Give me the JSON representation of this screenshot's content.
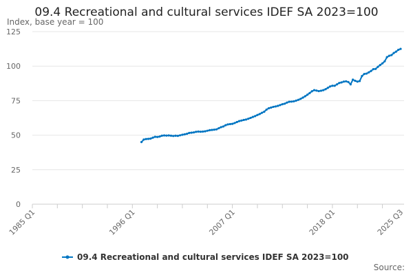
{
  "chart_data": {
    "type": "line",
    "title": "09.4 Recreational and cultural services IDEF SA 2023=100",
    "ylabel": "Index, base year = 100",
    "xlabel": "",
    "ylim": [
      0,
      125
    ],
    "yticks": [
      0,
      25,
      50,
      75,
      100,
      125
    ],
    "x_range": [
      "1985 Q1",
      "2025 Q3"
    ],
    "xtick_labels": [
      "1985 Q1",
      "1996 Q1",
      "2007 Q1",
      "2018 Q1",
      "2025 Q3"
    ],
    "grid": "horizontal",
    "legend_position": "bottom",
    "color": "#0075c2",
    "source_label": "Source:",
    "series": [
      {
        "name": "09.4 Recreational and cultural services IDEF SA 2023=100",
        "start": "1997 Q1",
        "values": [
          45,
          46.8,
          47.2,
          47.3,
          47.5,
          48.2,
          48.8,
          48.7,
          49.0,
          49.6,
          49.8,
          49.7,
          49.8,
          49.6,
          49.4,
          49.6,
          49.5,
          49.9,
          50.3,
          50.6,
          51.0,
          51.6,
          51.8,
          52.0,
          52.4,
          52.6,
          52.5,
          52.6,
          52.8,
          53.2,
          53.6,
          53.8,
          54.0,
          54.2,
          55.0,
          55.8,
          56.3,
          57.2,
          57.8,
          58.0,
          58.2,
          58.8,
          59.5,
          60.2,
          60.6,
          61.0,
          61.3,
          61.9,
          62.5,
          63.2,
          63.8,
          64.6,
          65.3,
          66.2,
          67.0,
          68.5,
          69.5,
          70.0,
          70.5,
          70.8,
          71.2,
          71.8,
          72.4,
          72.8,
          73.6,
          74.2,
          74.3,
          74.5,
          75.0,
          75.6,
          76.3,
          77.2,
          78.2,
          79.3,
          80.5,
          81.8,
          82.6,
          82.3,
          81.9,
          82.2,
          82.6,
          83.3,
          84.3,
          85.3,
          85.8,
          85.8,
          86.8,
          87.8,
          88.2,
          88.8,
          89.0,
          88.5,
          86.8,
          90.2,
          89.4,
          88.8,
          89.2,
          92.8,
          94.3,
          94.6,
          95.5,
          96.5,
          97.8,
          98.0,
          99.5,
          100.8,
          102.0,
          103.5,
          106.5,
          107.5,
          108.0,
          109.5,
          110.5,
          111.8,
          112.5
        ]
      }
    ]
  }
}
